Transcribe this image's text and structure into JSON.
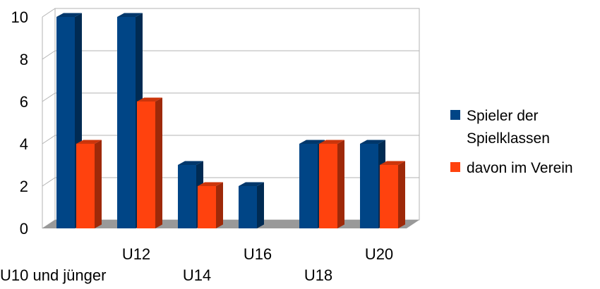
{
  "chart_data": {
    "type": "bar",
    "style": "3d-clustered",
    "categories": [
      "U10 und jünger",
      "U12",
      "U14",
      "U16",
      "U18",
      "U20"
    ],
    "series": [
      {
        "name": "Spieler der Spielklassen",
        "name_lines": [
          "Spieler der",
          "Spielklassen"
        ],
        "color": "#004586",
        "values": [
          10,
          10,
          3,
          2,
          4,
          4
        ]
      },
      {
        "name": "davon im Verein",
        "name_lines": [
          "davon im Verein"
        ],
        "color": "#ff420e",
        "values": [
          4,
          6,
          2,
          null,
          4,
          3
        ]
      }
    ],
    "ylim": [
      0,
      10
    ],
    "yticks": [
      "0",
      "2",
      "4",
      "6",
      "8",
      "10"
    ],
    "grid": true,
    "legend": "right",
    "floor_color": "#999999",
    "grid_color": "#b3b3b3"
  }
}
